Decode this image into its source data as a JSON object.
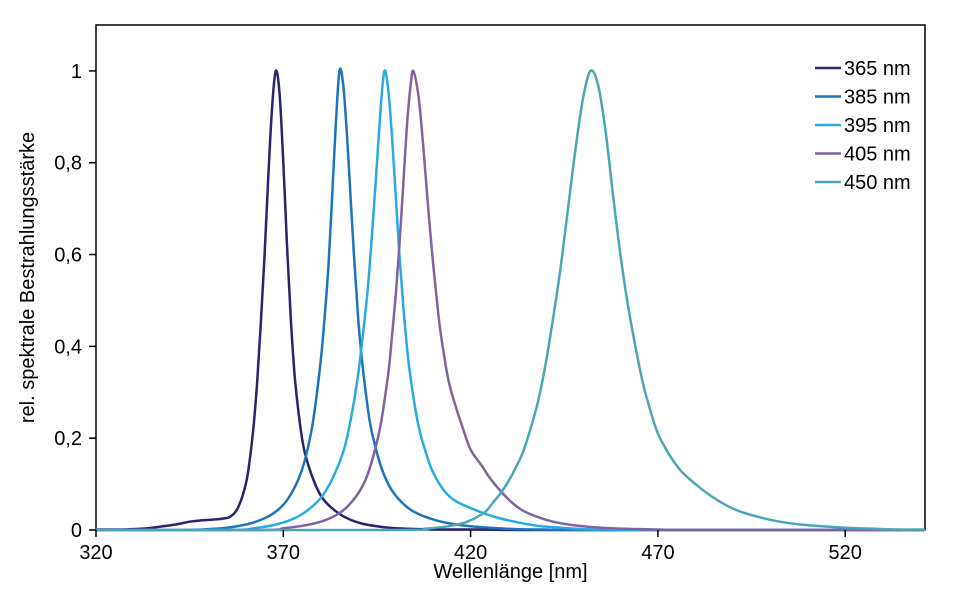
{
  "figure": {
    "background": "#ffffff",
    "border_color": "#000000"
  },
  "chart_data": {
    "type": "line",
    "title": "",
    "xlabel": "Wellenlänge [nm]",
    "ylabel": "rel. spektrale Bestrahlungsstärke",
    "xlim": [
      320,
      541.3
    ],
    "ylim": [
      0,
      1.1
    ],
    "grid": false,
    "legend_position": "inside-top-right",
    "x_ticks": [
      {
        "v": 320,
        "label": "320"
      },
      {
        "v": 370,
        "label": "370"
      },
      {
        "v": 420,
        "label": "420"
      },
      {
        "v": 470,
        "label": "470"
      },
      {
        "v": 520,
        "label": "520"
      }
    ],
    "y_ticks": [
      {
        "v": 0,
        "label": "0"
      },
      {
        "v": 0.2,
        "label": "0,2"
      },
      {
        "v": 0.4,
        "label": "0,4"
      },
      {
        "v": 0.6,
        "label": "0,6"
      },
      {
        "v": 0.8,
        "label": "0,8"
      },
      {
        "v": 1,
        "label": "1"
      }
    ],
    "series": [
      {
        "name": "365 nm",
        "color": "#28246E",
        "line_width": 2.5,
        "points": [
          [
            320,
            0.001
          ],
          [
            326,
            0.001
          ],
          [
            330,
            0.002
          ],
          [
            334,
            0.004
          ],
          [
            338,
            0.008
          ],
          [
            342,
            0.013
          ],
          [
            345,
            0.018
          ],
          [
            348,
            0.021
          ],
          [
            350,
            0.022
          ],
          [
            352,
            0.023
          ],
          [
            354,
            0.025
          ],
          [
            356,
            0.03
          ],
          [
            358,
            0.05
          ],
          [
            360,
            0.1
          ],
          [
            361,
            0.15
          ],
          [
            362,
            0.22
          ],
          [
            363,
            0.32
          ],
          [
            364,
            0.45
          ],
          [
            365,
            0.6
          ],
          [
            366,
            0.77
          ],
          [
            367,
            0.92
          ],
          [
            368,
            1.0
          ],
          [
            369,
            0.95
          ],
          [
            370,
            0.8
          ],
          [
            371,
            0.62
          ],
          [
            372,
            0.46
          ],
          [
            373,
            0.34
          ],
          [
            374,
            0.26
          ],
          [
            375,
            0.2
          ],
          [
            376,
            0.16
          ],
          [
            378,
            0.11
          ],
          [
            380,
            0.075
          ],
          [
            382,
            0.055
          ],
          [
            385,
            0.035
          ],
          [
            388,
            0.022
          ],
          [
            391,
            0.014
          ],
          [
            395,
            0.008
          ],
          [
            400,
            0.004
          ],
          [
            406,
            0.002
          ],
          [
            415,
            0.001
          ],
          [
            425,
            0.001
          ],
          [
            440,
            0
          ],
          [
            541,
            0
          ]
        ]
      },
      {
        "name": "385 nm",
        "color": "#1C75BC",
        "line_width": 2.5,
        "points": [
          [
            320,
            0
          ],
          [
            344,
            0
          ],
          [
            350,
            0.002
          ],
          [
            355,
            0.005
          ],
          [
            360,
            0.012
          ],
          [
            364,
            0.022
          ],
          [
            368,
            0.04
          ],
          [
            371,
            0.065
          ],
          [
            374,
            0.11
          ],
          [
            376,
            0.16
          ],
          [
            378,
            0.24
          ],
          [
            380,
            0.37
          ],
          [
            381,
            0.46
          ],
          [
            382,
            0.57
          ],
          [
            383,
            0.72
          ],
          [
            384,
            0.88
          ],
          [
            385,
            1.0
          ],
          [
            386,
            0.97
          ],
          [
            387,
            0.86
          ],
          [
            388,
            0.72
          ],
          [
            389,
            0.58
          ],
          [
            390,
            0.46
          ],
          [
            391,
            0.37
          ],
          [
            392,
            0.3
          ],
          [
            393,
            0.24
          ],
          [
            394,
            0.2
          ],
          [
            396,
            0.14
          ],
          [
            398,
            0.1
          ],
          [
            400,
            0.075
          ],
          [
            403,
            0.05
          ],
          [
            406,
            0.035
          ],
          [
            410,
            0.023
          ],
          [
            414,
            0.015
          ],
          [
            419,
            0.009
          ],
          [
            425,
            0.005
          ],
          [
            432,
            0.002
          ],
          [
            440,
            0.001
          ],
          [
            450,
            0
          ],
          [
            541,
            0
          ]
        ]
      },
      {
        "name": "395 nm",
        "color": "#29ABE2",
        "line_width": 2.5,
        "points": [
          [
            320,
            0
          ],
          [
            356,
            0
          ],
          [
            362,
            0.004
          ],
          [
            367,
            0.01
          ],
          [
            372,
            0.022
          ],
          [
            376,
            0.04
          ],
          [
            380,
            0.07
          ],
          [
            383,
            0.11
          ],
          [
            386,
            0.17
          ],
          [
            388,
            0.24
          ],
          [
            390,
            0.34
          ],
          [
            392,
            0.48
          ],
          [
            393,
            0.57
          ],
          [
            394,
            0.68
          ],
          [
            395,
            0.8
          ],
          [
            396,
            0.92
          ],
          [
            397,
            1.0
          ],
          [
            398,
            0.96
          ],
          [
            399,
            0.86
          ],
          [
            400,
            0.73
          ],
          [
            401,
            0.6
          ],
          [
            402,
            0.49
          ],
          [
            403,
            0.4
          ],
          [
            404,
            0.33
          ],
          [
            406,
            0.23
          ],
          [
            408,
            0.17
          ],
          [
            410,
            0.125
          ],
          [
            413,
            0.085
          ],
          [
            416,
            0.063
          ],
          [
            420,
            0.048
          ],
          [
            424,
            0.035
          ],
          [
            428,
            0.025
          ],
          [
            433,
            0.016
          ],
          [
            438,
            0.009
          ],
          [
            444,
            0.005
          ],
          [
            450,
            0.002
          ],
          [
            458,
            0.001
          ],
          [
            466,
            0
          ],
          [
            541,
            0
          ]
        ]
      },
      {
        "name": "405 nm",
        "color": "#8064A2",
        "line_width": 2.5,
        "points": [
          [
            320,
            0
          ],
          [
            364,
            0
          ],
          [
            370,
            0.004
          ],
          [
            375,
            0.009
          ],
          [
            380,
            0.018
          ],
          [
            384,
            0.032
          ],
          [
            387,
            0.05
          ],
          [
            390,
            0.08
          ],
          [
            392,
            0.11
          ],
          [
            394,
            0.16
          ],
          [
            396,
            0.23
          ],
          [
            398,
            0.34
          ],
          [
            399,
            0.42
          ],
          [
            400,
            0.51
          ],
          [
            401,
            0.62
          ],
          [
            402,
            0.75
          ],
          [
            403,
            0.88
          ],
          [
            404,
            0.97
          ],
          [
            404.7,
            1.0
          ],
          [
            406,
            0.95
          ],
          [
            407,
            0.87
          ],
          [
            408,
            0.77
          ],
          [
            409,
            0.67
          ],
          [
            410,
            0.58
          ],
          [
            411,
            0.5
          ],
          [
            412,
            0.43
          ],
          [
            414,
            0.33
          ],
          [
            416,
            0.27
          ],
          [
            418,
            0.22
          ],
          [
            420,
            0.175
          ],
          [
            423,
            0.14
          ],
          [
            425,
            0.115
          ],
          [
            428,
            0.085
          ],
          [
            431,
            0.06
          ],
          [
            434,
            0.042
          ],
          [
            438,
            0.028
          ],
          [
            442,
            0.018
          ],
          [
            447,
            0.011
          ],
          [
            453,
            0.006
          ],
          [
            460,
            0.003
          ],
          [
            470,
            0.001
          ],
          [
            480,
            0
          ],
          [
            541,
            0
          ]
        ]
      },
      {
        "name": "450 nm",
        "color": "#4BA6B5",
        "line_width": 2.5,
        "points": [
          [
            320,
            0
          ],
          [
            400,
            0
          ],
          [
            408,
            0.003
          ],
          [
            414,
            0.008
          ],
          [
            418,
            0.015
          ],
          [
            421,
            0.025
          ],
          [
            424,
            0.04
          ],
          [
            426,
            0.06
          ],
          [
            428,
            0.08
          ],
          [
            430,
            0.105
          ],
          [
            432,
            0.135
          ],
          [
            434,
            0.17
          ],
          [
            436,
            0.22
          ],
          [
            438,
            0.28
          ],
          [
            440,
            0.36
          ],
          [
            442,
            0.46
          ],
          [
            444,
            0.57
          ],
          [
            446,
            0.7
          ],
          [
            448,
            0.83
          ],
          [
            450,
            0.94
          ],
          [
            452,
            1.0
          ],
          [
            454,
            0.97
          ],
          [
            456,
            0.87
          ],
          [
            458,
            0.73
          ],
          [
            460,
            0.6
          ],
          [
            462,
            0.49
          ],
          [
            464,
            0.4
          ],
          [
            466,
            0.32
          ],
          [
            468,
            0.26
          ],
          [
            470,
            0.21
          ],
          [
            473,
            0.165
          ],
          [
            476,
            0.13
          ],
          [
            480,
            0.1
          ],
          [
            484,
            0.075
          ],
          [
            488,
            0.055
          ],
          [
            492,
            0.04
          ],
          [
            497,
            0.028
          ],
          [
            502,
            0.019
          ],
          [
            508,
            0.012
          ],
          [
            514,
            0.008
          ],
          [
            520,
            0.005
          ],
          [
            527,
            0.003
          ],
          [
            534,
            0.001
          ],
          [
            541,
            0.001
          ]
        ]
      }
    ]
  }
}
